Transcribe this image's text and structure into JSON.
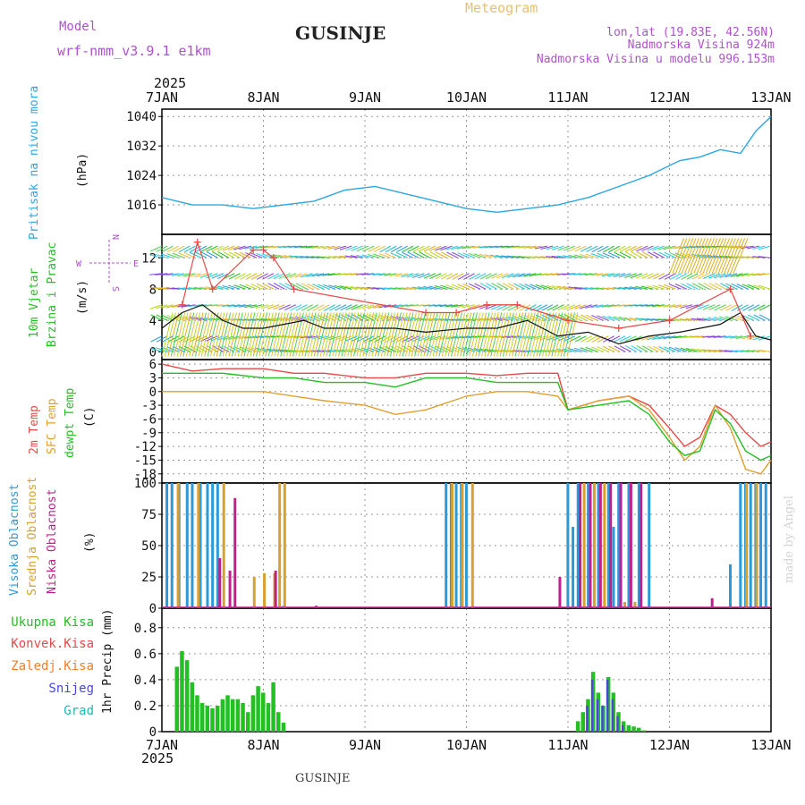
{
  "header": {
    "model_label": "Model",
    "model_name": "wrf-nmm_v3.9.1 e1km",
    "location": "GUSINJE",
    "product": "Meteogram",
    "coords": "lon,lat (19.83E, 42.56N)",
    "altitude": "Nadmorska Visina 924m",
    "model_altitude": "Nadmorska Visina u modelu 996.153m"
  },
  "footer": {
    "location": "GUSINJE",
    "credit": "made by Angel"
  },
  "time_axis": {
    "year": "2025",
    "ticks": [
      "7JAN",
      "8JAN",
      "9JAN",
      "10JAN",
      "11JAN",
      "12JAN",
      "13JAN"
    ]
  },
  "panels": {
    "pressure": {
      "label": "Pritisak na nivou mora",
      "unit": "(hPa)"
    },
    "wind": {
      "label1": "10m Vjetar",
      "label2": "Brzina i Pravac",
      "unit": "(m/s)",
      "rose": [
        "N",
        "E",
        "S",
        "W"
      ]
    },
    "temp": {
      "label1": "2m Temp",
      "label2": "SFC Temp",
      "label3": "dewpt Temp",
      "unit": "(C)"
    },
    "cloud": {
      "label1": "Visoka Oblacnost",
      "label2": "Srednja Oblacnost",
      "label3": "Niska Oblacnost",
      "unit": "(%)"
    },
    "precip": {
      "labels": [
        "Ukupna Kisa",
        "Konvek.Kisa",
        "Zaledj.Kisa",
        "Snijeg",
        "Grad"
      ],
      "unit": "1hr Precip (mm)"
    }
  },
  "colors": {
    "pressure": "#2aa7e0",
    "temp2m": "#e84848",
    "sfc": "#e0a030",
    "dewpt": "#22c022",
    "high": "#2a9ad8",
    "mid": "#d8a030",
    "low": "#c0208c",
    "rain": "#22c022",
    "conv": "#e84848",
    "frz": "#f08030",
    "snow": "#4848d8",
    "graupel": "#20b8b8"
  },
  "chart_data": [
    {
      "type": "line",
      "title": "",
      "xlabel": "",
      "ylabel": "Pritisak na nivou mora (hPa)",
      "ylim": [
        1008,
        1042
      ],
      "yticks": [
        1016,
        1024,
        1032,
        1040
      ],
      "xlim_days": [
        0,
        6
      ],
      "series": [
        {
          "x": [
            0,
            0.3,
            0.6,
            0.9,
            1.2,
            1.5,
            1.8,
            2.1,
            2.4,
            2.7,
            3.0,
            3.3,
            3.6,
            3.9,
            4.2,
            4.5,
            4.8,
            5.1,
            5.3,
            5.5,
            5.7,
            5.85,
            6.0
          ],
          "values": [
            1018,
            1016,
            1016,
            1015,
            1016,
            1017,
            1020,
            1021,
            1019,
            1017,
            1015,
            1014,
            1015,
            1016,
            1018,
            1021,
            1024,
            1028,
            1029,
            1031,
            1030,
            1036,
            1040
          ]
        }
      ]
    },
    {
      "type": "line",
      "title": "",
      "xlabel": "",
      "ylabel": "10m Vjetar Brzina i Pravac (m/s)",
      "ylim": [
        -1,
        15
      ],
      "yticks": [
        0,
        4,
        8,
        12
      ],
      "xlim_days": [
        0,
        6
      ],
      "series": [
        {
          "name": "speed",
          "x": [
            0,
            0.2,
            0.4,
            0.6,
            0.8,
            1.0,
            1.2,
            1.4,
            1.6,
            1.8,
            2.0,
            2.3,
            2.6,
            3.0,
            3.3,
            3.6,
            3.9,
            4.2,
            4.5,
            4.8,
            5.1,
            5.3,
            5.5,
            5.7,
            5.85,
            6.0
          ],
          "values": [
            3,
            5,
            6,
            4,
            3,
            3,
            3.5,
            4,
            3,
            3,
            3,
            3,
            2.5,
            3,
            3,
            4,
            2,
            2.5,
            1,
            2,
            2.5,
            3,
            3.5,
            5,
            2,
            1.5
          ]
        },
        {
          "name": "gust",
          "x": [
            0.2,
            0.35,
            0.5,
            0.9,
            1.0,
            1.1,
            1.3,
            2.6,
            2.9,
            3.2,
            3.5,
            4.0,
            4.5,
            5.0,
            5.6,
            5.8
          ],
          "values": [
            6,
            14,
            8,
            13,
            13,
            12,
            8,
            5,
            5,
            6,
            6,
            4,
            3,
            4,
            8,
            2
          ]
        }
      ]
    },
    {
      "type": "line",
      "title": "",
      "xlabel": "",
      "ylabel": "2m Temp / SFC Temp / dewpt Temp (C)",
      "ylim": [
        -20,
        7
      ],
      "yticks": [
        6,
        3,
        0,
        -3,
        -6,
        -9,
        -12,
        -15,
        -18
      ],
      "xlim_days": [
        0,
        6
      ],
      "series": [
        {
          "name": "2m Temp",
          "x": [
            0,
            0.3,
            0.6,
            1.0,
            1.3,
            1.6,
            2.0,
            2.3,
            2.6,
            3.0,
            3.3,
            3.6,
            3.9,
            4.0,
            4.3,
            4.6,
            4.8,
            5.0,
            5.15,
            5.3,
            5.45,
            5.6,
            5.75,
            5.9,
            6.0
          ],
          "values": [
            6,
            4.5,
            5,
            5,
            4,
            4,
            3,
            3,
            4,
            4,
            3.5,
            4,
            4,
            -4,
            -2,
            -1,
            -3,
            -8,
            -12,
            -10,
            -3,
            -5,
            -9,
            -12,
            -11
          ]
        },
        {
          "name": "SFC Temp",
          "x": [
            0,
            0.3,
            0.6,
            1.0,
            1.3,
            1.6,
            2.0,
            2.3,
            2.6,
            3.0,
            3.3,
            3.6,
            3.9,
            4.0,
            4.3,
            4.6,
            4.8,
            5.0,
            5.15,
            5.3,
            5.45,
            5.6,
            5.75,
            5.9,
            6.0
          ],
          "values": [
            0,
            0,
            0,
            0,
            -1,
            -2,
            -3,
            -5,
            -4,
            -1,
            0,
            0,
            -1,
            -4,
            -2,
            -1,
            -4,
            -10,
            -15,
            -12,
            -3,
            -8,
            -17,
            -18,
            -15
          ]
        },
        {
          "name": "dewpt Temp",
          "x": [
            0,
            0.3,
            0.6,
            1.0,
            1.3,
            1.6,
            2.0,
            2.3,
            2.6,
            3.0,
            3.3,
            3.6,
            3.9,
            4.0,
            4.3,
            4.6,
            4.8,
            5.0,
            5.15,
            5.3,
            5.45,
            5.6,
            5.75,
            5.9,
            6.0
          ],
          "values": [
            4,
            4,
            4,
            3,
            3,
            2,
            2,
            1,
            3,
            3,
            2,
            2,
            2,
            -4,
            -3,
            -2,
            -5,
            -11,
            -14,
            -13,
            -4,
            -7,
            -13,
            -15,
            -14
          ]
        }
      ]
    },
    {
      "type": "bar",
      "title": "",
      "xlabel": "",
      "ylabel": "Visoka / Srednja / Niska Oblacnost (%)",
      "ylim": [
        0,
        100
      ],
      "yticks": [
        0,
        25,
        50,
        75,
        100
      ],
      "xlim_days": [
        0,
        6
      ],
      "series": [
        {
          "name": "Visoka Oblacnost",
          "x": [
            0.05,
            0.1,
            0.17,
            0.25,
            0.3,
            0.38,
            0.45,
            0.5,
            0.55,
            1.2,
            2.8,
            2.85,
            2.9,
            2.95,
            3.0,
            4.0,
            4.05,
            4.1,
            4.2,
            4.3,
            4.4,
            4.45,
            4.5,
            4.6,
            4.7,
            4.8,
            5.6,
            5.7,
            5.75,
            5.8,
            5.85,
            5.9,
            5.95
          ],
          "values": [
            100,
            100,
            100,
            100,
            100,
            100,
            100,
            100,
            100,
            2,
            100,
            100,
            100,
            100,
            100,
            100,
            65,
            100,
            100,
            100,
            100,
            65,
            100,
            100,
            100,
            100,
            35,
            100,
            100,
            100,
            100,
            100,
            100
          ]
        },
        {
          "name": "Srednja Oblacnost",
          "x": [
            0.15,
            0.35,
            0.6,
            0.9,
            1.0,
            1.1,
            1.15,
            1.2,
            2.85,
            2.95,
            3.05,
            4.15,
            4.25,
            4.35,
            4.55,
            4.65,
            5.75,
            5.85
          ],
          "values": [
            100,
            100,
            100,
            25,
            28,
            28,
            100,
            100,
            100,
            100,
            100,
            100,
            100,
            100,
            5,
            5,
            100,
            100
          ]
        },
        {
          "name": "Niska Oblacnost",
          "x": [
            0.55,
            0.65,
            0.7,
            1.1,
            1.5,
            3.9,
            4.1,
            4.2,
            4.3,
            4.4,
            4.5,
            4.6,
            4.7,
            5.4
          ],
          "values": [
            40,
            30,
            88,
            30,
            2,
            25,
            100,
            100,
            100,
            100,
            100,
            100,
            100,
            8
          ]
        }
      ]
    },
    {
      "type": "bar",
      "title": "",
      "xlabel": "",
      "ylabel": "1hr Precip (mm)",
      "ylim": [
        0,
        0.95
      ],
      "yticks": [
        0,
        0.2,
        0.4,
        0.6,
        0.8
      ],
      "xlim_days": [
        0,
        6
      ],
      "series": [
        {
          "name": "Ukupna Kisa",
          "x": [
            0.15,
            0.2,
            0.25,
            0.3,
            0.35,
            0.4,
            0.45,
            0.5,
            0.55,
            0.6,
            0.65,
            0.7,
            0.75,
            0.8,
            0.85,
            0.9,
            0.95,
            1.0,
            1.05,
            1.1,
            1.15,
            1.2,
            4.1,
            4.15,
            4.2,
            4.25,
            4.3,
            4.35,
            4.4,
            4.45,
            4.5,
            4.55,
            4.6,
            4.65,
            4.7,
            4.75
          ],
          "values": [
            0.5,
            0.62,
            0.55,
            0.38,
            0.28,
            0.22,
            0.2,
            0.18,
            0.2,
            0.25,
            0.28,
            0.25,
            0.25,
            0.22,
            0.15,
            0.28,
            0.35,
            0.3,
            0.22,
            0.38,
            0.15,
            0.07,
            0.08,
            0.15,
            0.25,
            0.46,
            0.3,
            0.2,
            0.42,
            0.3,
            0.15,
            0.08,
            0.05,
            0.04,
            0.03,
            0.01
          ]
        },
        {
          "name": "Snijeg",
          "x": [
            4.2,
            4.25,
            4.3,
            4.35,
            4.4,
            4.45,
            4.5,
            4.55
          ],
          "values": [
            0.2,
            0.4,
            0.25,
            0.2,
            0.4,
            0.25,
            0.12,
            0.05
          ]
        }
      ]
    }
  ]
}
